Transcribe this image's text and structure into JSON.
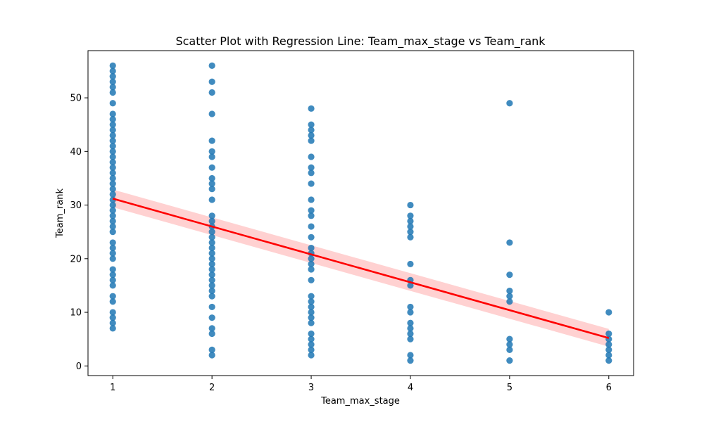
{
  "chart_data": {
    "type": "scatter",
    "title": "Scatter Plot with Regression Line: Team_max_stage vs Team_rank",
    "xlabel": "Team_max_stage",
    "ylabel": "Team_rank",
    "xlim": [
      0.75,
      6.25
    ],
    "ylim": [
      -1.8,
      58.8
    ],
    "xticks": [
      1,
      2,
      3,
      4,
      5,
      6
    ],
    "yticks": [
      0,
      10,
      20,
      30,
      40,
      50
    ],
    "grid": false,
    "legend": "none",
    "point_color": "#1f77b4",
    "line_color": "#ff0000",
    "band_color": "#ff9999",
    "points": [
      {
        "x": 1,
        "ys": [
          56,
          55,
          54,
          53,
          52,
          51,
          49,
          47,
          46,
          45,
          44,
          43,
          42,
          41,
          40,
          39,
          38,
          37,
          36,
          35,
          34,
          33,
          32,
          31,
          30,
          29,
          28,
          27,
          26,
          25,
          23,
          22,
          21,
          20,
          18,
          17,
          16,
          15,
          13,
          12,
          10,
          9,
          8,
          7
        ]
      },
      {
        "x": 2,
        "ys": [
          56,
          53,
          51,
          47,
          42,
          40,
          39,
          37,
          35,
          34,
          33,
          31,
          28,
          27,
          26,
          25,
          24,
          23,
          22,
          21,
          20,
          19,
          18,
          17,
          16,
          15,
          14,
          13,
          11,
          9,
          7,
          6,
          3,
          2
        ]
      },
      {
        "x": 3,
        "ys": [
          48,
          45,
          44,
          43,
          42,
          39,
          37,
          36,
          34,
          31,
          29,
          28,
          26,
          24,
          22,
          21,
          20,
          19,
          18,
          16,
          13,
          12,
          11,
          10,
          9,
          8,
          6,
          5,
          4,
          3,
          2
        ]
      },
      {
        "x": 4,
        "ys": [
          30,
          28,
          27,
          26,
          25,
          24,
          19,
          16,
          15,
          11,
          10,
          8,
          7,
          6,
          5,
          2,
          1
        ]
      },
      {
        "x": 5,
        "ys": [
          49,
          23,
          17,
          14,
          13,
          12,
          5,
          4,
          3,
          1
        ]
      },
      {
        "x": 6,
        "ys": [
          10,
          6,
          5,
          4,
          3,
          2,
          1
        ]
      }
    ],
    "regression": {
      "x": [
        1,
        6
      ],
      "y": [
        31.2,
        5.2
      ],
      "ci_lower": [
        29.6,
        3.6
      ],
      "ci_upper": [
        32.9,
        6.9
      ]
    }
  }
}
